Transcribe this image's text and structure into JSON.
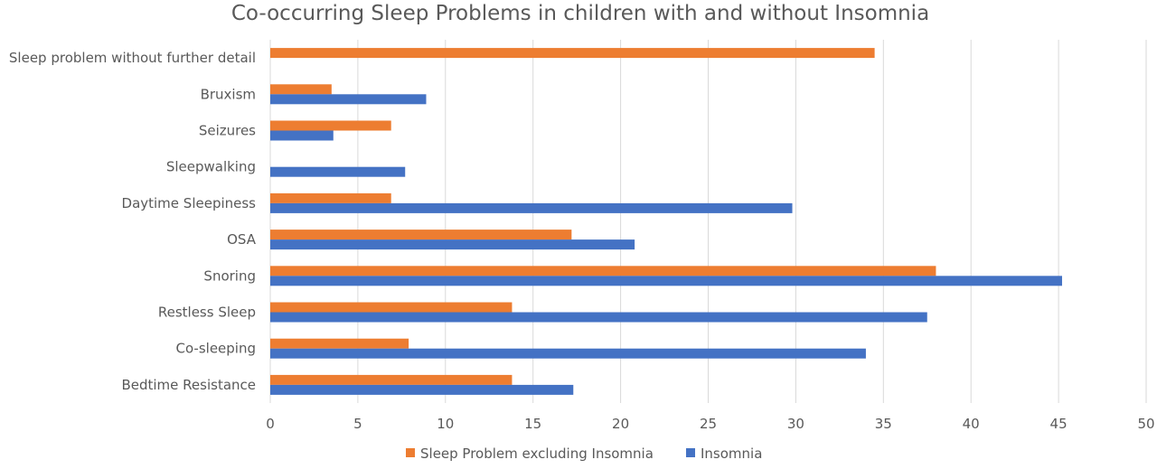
{
  "chart_data": {
    "type": "bar",
    "orientation": "horizontal",
    "title": "Co-occurring Sleep Problems in children with and without Insomnia",
    "xlabel": "",
    "ylabel": "",
    "xlim": [
      0,
      50
    ],
    "xticks": [
      0,
      5,
      10,
      15,
      20,
      25,
      30,
      35,
      40,
      45,
      50
    ],
    "grid": true,
    "legend_position": "bottom",
    "categories": [
      "Sleep problem without further detail",
      "Bruxism",
      "Seizures",
      "Sleepwalking",
      "Daytime Sleepiness",
      "OSA",
      "Snoring",
      "Restless Sleep",
      "Co-sleeping",
      "Bedtime Resistance"
    ],
    "series": [
      {
        "name": "Sleep Problem excluding Insomnia",
        "color": "#ed7d31",
        "values": [
          34.5,
          3.5,
          6.9,
          0,
          6.9,
          17.2,
          38.0,
          13.8,
          7.9,
          13.8
        ]
      },
      {
        "name": "Insomnia",
        "color": "#4472c4",
        "values": [
          0,
          8.9,
          3.6,
          7.7,
          29.8,
          20.8,
          45.2,
          37.5,
          34.0,
          17.3
        ]
      }
    ]
  }
}
